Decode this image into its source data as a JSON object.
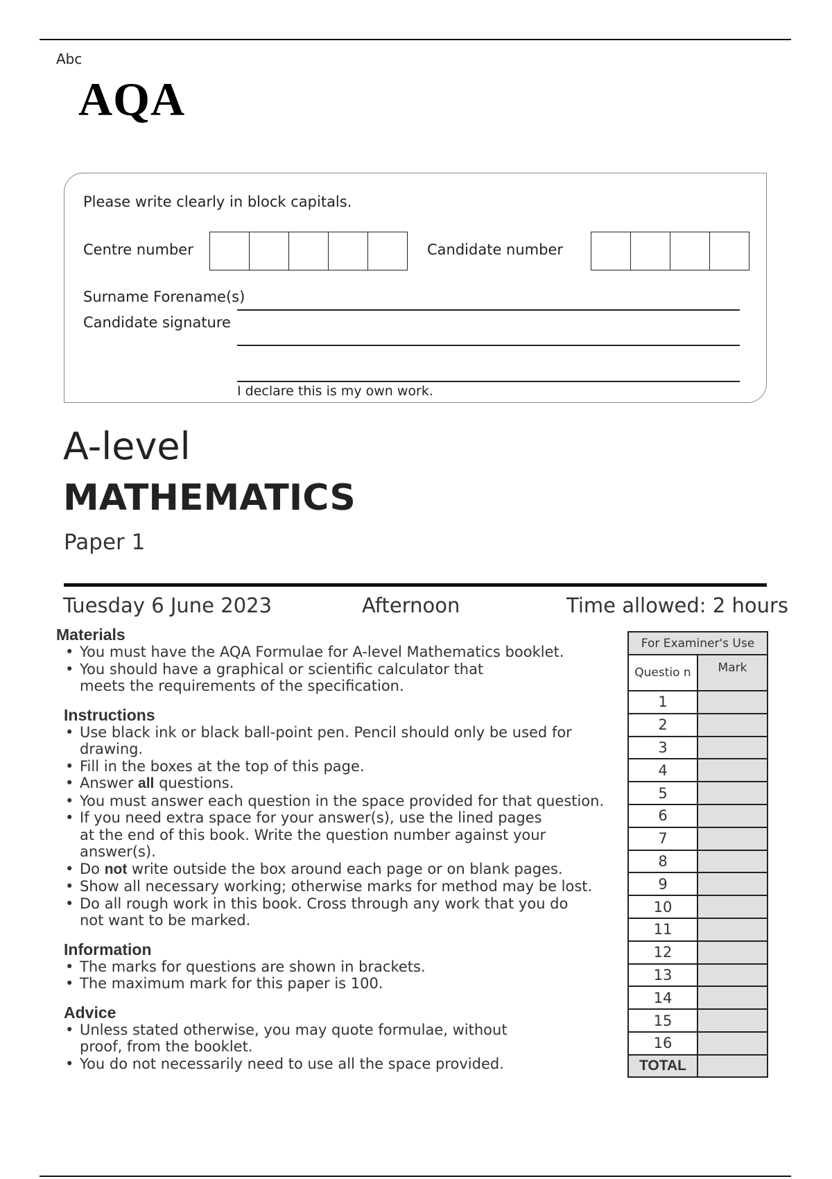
{
  "header": {
    "small_label": "Abc",
    "logo": "AQA"
  },
  "form": {
    "instruction": "Please write clearly in block capitals.",
    "centre_label": "Centre number",
    "centre_boxes": 5,
    "candidate_label": "Candidate number",
    "candidate_boxes": 4,
    "surname_label": "Surname Forename(s)",
    "signature_label": "Candidate signature",
    "declaration": "I declare this is my own work."
  },
  "title": {
    "level": "A-level",
    "subject": "MATHEMATICS",
    "paper": "Paper 1"
  },
  "exam": {
    "date": "Tuesday 6 June 2023",
    "session": "Afternoon",
    "time": "Time allowed: 2 hours"
  },
  "sections": [
    {
      "heading": "Materials",
      "lines": [
        {
          "b": true,
          "pre": "You must have the AQA Formulae for A-level Mathematics booklet."
        },
        {
          "b": true,
          "pre": "You should have a graphical or scientific calculator that"
        },
        {
          "b": false,
          "pre": "meets the requirements of the specification."
        }
      ]
    },
    {
      "heading": "Instructions",
      "lines": [
        {
          "b": true,
          "pre": "Use black ink or black ball-point pen.  Pencil should only be used for drawing."
        },
        {
          "b": true,
          "pre": "Fill in the boxes at the top of this page."
        },
        {
          "b": true,
          "pre": "Answer ",
          "bold": "all",
          "post": " questions."
        },
        {
          "b": true,
          "pre": "You must answer each question in the space provided for that question."
        },
        {
          "b": true,
          "pre": "If you need extra space for your answer(s), use the lined pages"
        },
        {
          "b": false,
          "pre": "at the end of this book. Write the question number against your"
        },
        {
          "b": false,
          "pre": "answer(s)."
        },
        {
          "b": true,
          "pre": "Do ",
          "bold": "not",
          "post": " write outside the box around each page or on blank pages."
        },
        {
          "b": true,
          "pre": "Show all necessary working; otherwise marks for method may be lost."
        },
        {
          "b": true,
          "pre": "Do all rough work in this book. Cross through any work that you do"
        },
        {
          "b": false,
          "pre": "not want to be marked."
        }
      ]
    },
    {
      "heading": "Information",
      "lines": [
        {
          "b": true,
          "pre": "The marks for questions are shown in brackets."
        },
        {
          "b": true,
          "pre": "The maximum mark for this paper is 100."
        }
      ]
    },
    {
      "heading": "Advice",
      "lines": [
        {
          "b": true,
          "pre": "Unless stated otherwise, you may quote formulae, without"
        },
        {
          "b": false,
          "pre": "proof, from the booklet."
        },
        {
          "b": true,
          "pre": "You do not necessarily need to use all the space provided."
        }
      ]
    }
  ],
  "examiner_table": {
    "title": "For Examiner's Use",
    "col_question": "Questio n",
    "col_mark": "Mark",
    "questions": [
      "1",
      "2",
      "3",
      "4",
      "5",
      "6",
      "7",
      "8",
      "9",
      "10",
      "11",
      "12",
      "13",
      "14",
      "15",
      "16"
    ],
    "total": "TOTAL"
  }
}
